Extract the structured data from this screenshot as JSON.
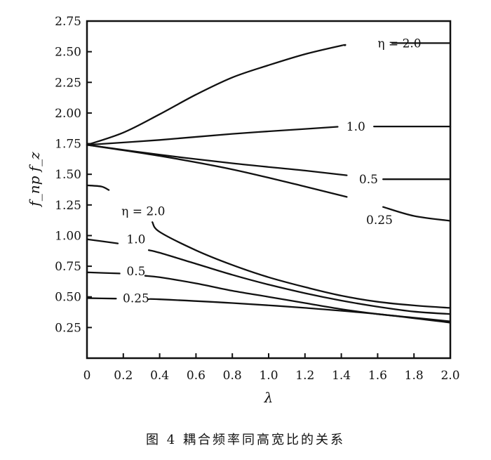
{
  "caption": "图 4   耦合频率同高宽比的关系",
  "chart_data": {
    "type": "line",
    "xlabel": "λ",
    "ylabel": "f_np  f_z",
    "xlim": [
      0,
      2.0
    ],
    "ylim": [
      0,
      2.75
    ],
    "x_ticks": [
      "0",
      "0.2",
      "0.4",
      "0.6",
      "0.8",
      "1.0",
      "1.2",
      "1.4",
      "1.6",
      "1.8",
      "2.0"
    ],
    "y_ticks": [
      "0.25",
      "0.50",
      "0.75",
      "1.00",
      "1.25",
      "1.50",
      "1.75",
      "2.00",
      "2.25",
      "2.50",
      "2.75"
    ],
    "grid": false,
    "series": [
      {
        "name": "η = 2.0",
        "group": "upper",
        "points": [
          [
            0,
            1.74
          ],
          [
            0.2,
            1.84
          ],
          [
            0.4,
            1.99
          ],
          [
            0.6,
            2.15
          ],
          [
            0.8,
            2.29
          ],
          [
            1.0,
            2.39
          ],
          [
            1.2,
            2.48
          ],
          [
            1.4,
            2.55
          ],
          [
            1.6,
            2.57
          ],
          [
            2.0,
            2.57
          ]
        ]
      },
      {
        "name": "1.0",
        "group": "upper",
        "points": [
          [
            0,
            1.74
          ],
          [
            0.4,
            1.78
          ],
          [
            0.8,
            1.83
          ],
          [
            1.2,
            1.87
          ],
          [
            1.4,
            1.89
          ],
          [
            2.0,
            1.89
          ]
        ]
      },
      {
        "name": "0.5",
        "group": "upper",
        "points": [
          [
            0,
            1.74
          ],
          [
            0.4,
            1.66
          ],
          [
            0.8,
            1.59
          ],
          [
            1.2,
            1.53
          ],
          [
            1.5,
            1.48
          ],
          [
            1.6,
            1.46
          ],
          [
            2.0,
            1.46
          ]
        ]
      },
      {
        "name": "0.25",
        "group": "upper",
        "points": [
          [
            0,
            1.74
          ],
          [
            0.4,
            1.65
          ],
          [
            0.8,
            1.54
          ],
          [
            1.2,
            1.4
          ],
          [
            1.5,
            1.29
          ],
          [
            1.8,
            1.16
          ],
          [
            2.0,
            1.12
          ]
        ]
      },
      {
        "name": "η = 2.0",
        "group": "lower",
        "points": [
          [
            0,
            1.41
          ],
          [
            0.08,
            1.4
          ],
          [
            0.15,
            1.35
          ],
          [
            0.2,
            1.3
          ],
          [
            0.35,
            1.13
          ],
          [
            0.4,
            1.03
          ],
          [
            0.6,
            0.88
          ],
          [
            0.8,
            0.76
          ],
          [
            1.0,
            0.66
          ],
          [
            1.2,
            0.58
          ],
          [
            1.4,
            0.51
          ],
          [
            1.6,
            0.46
          ],
          [
            1.8,
            0.43
          ],
          [
            2.0,
            0.41
          ]
        ]
      },
      {
        "name": "1.0",
        "group": "lower",
        "points": [
          [
            0,
            0.97
          ],
          [
            0.2,
            0.93
          ],
          [
            0.4,
            0.86
          ],
          [
            0.6,
            0.77
          ],
          [
            0.8,
            0.68
          ],
          [
            1.0,
            0.6
          ],
          [
            1.2,
            0.53
          ],
          [
            1.4,
            0.47
          ],
          [
            1.6,
            0.42
          ],
          [
            1.8,
            0.38
          ],
          [
            2.0,
            0.36
          ]
        ]
      },
      {
        "name": "0.5",
        "group": "lower",
        "points": [
          [
            0,
            0.7
          ],
          [
            0.2,
            0.69
          ],
          [
            0.4,
            0.66
          ],
          [
            0.6,
            0.61
          ],
          [
            0.8,
            0.55
          ],
          [
            1.0,
            0.5
          ],
          [
            1.2,
            0.45
          ],
          [
            1.4,
            0.4
          ],
          [
            1.6,
            0.36
          ],
          [
            1.8,
            0.33
          ],
          [
            2.0,
            0.3
          ]
        ]
      },
      {
        "name": "0.25",
        "group": "lower",
        "points": [
          [
            0,
            0.49
          ],
          [
            0.4,
            0.48
          ],
          [
            0.8,
            0.45
          ],
          [
            1.2,
            0.41
          ],
          [
            1.6,
            0.36
          ],
          [
            2.0,
            0.29
          ]
        ]
      }
    ]
  }
}
